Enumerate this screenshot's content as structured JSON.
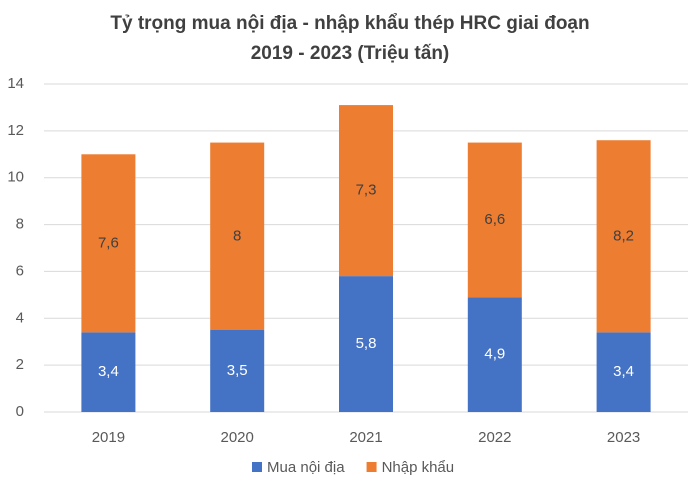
{
  "chart_data": {
    "type": "stacked-bar",
    "title": [
      "Tỷ trọng mua nội địa - nhập khẩu thép HRC giai đoạn",
      "2019 - 2023 (Triệu tấn)"
    ],
    "categories": [
      "2019",
      "2020",
      "2021",
      "2022",
      "2023"
    ],
    "series": [
      {
        "name": "Mua nội địa",
        "color": "#4472c4",
        "values": [
          3.4,
          3.5,
          5.8,
          4.9,
          3.4
        ],
        "value_labels": [
          "3,4",
          "3,5",
          "5,8",
          "4,9",
          "3,4"
        ],
        "label_color": "#ffffff"
      },
      {
        "name": "Nhập khẩu",
        "color": "#ed7d31",
        "values": [
          7.6,
          8,
          7.3,
          6.6,
          8.2
        ],
        "value_labels": [
          "7,6",
          "8",
          "7,3",
          "6,6",
          "8,2"
        ],
        "label_color": "#404040"
      }
    ],
    "ylim": [
      0,
      14
    ],
    "yticks": [
      0,
      2,
      4,
      6,
      8,
      10,
      12,
      14
    ],
    "grid": true,
    "legend": "bottom"
  }
}
